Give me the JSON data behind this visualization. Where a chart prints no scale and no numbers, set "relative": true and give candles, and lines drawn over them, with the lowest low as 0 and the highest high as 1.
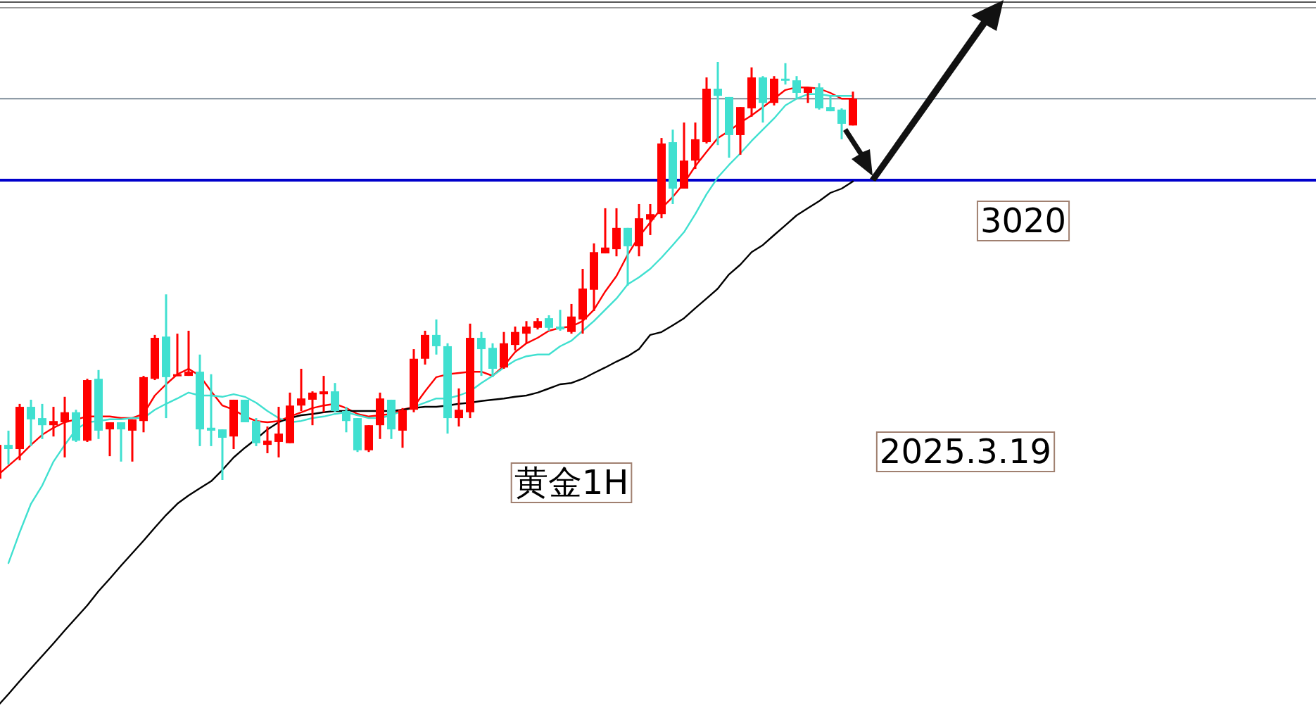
{
  "chart_data": {
    "type": "candlestick",
    "relative": true,
    "grid": false,
    "categories": [
      null,
      null,
      null,
      null,
      null,
      null,
      null,
      null,
      null,
      null,
      null,
      null,
      null,
      null,
      null,
      null,
      null,
      null,
      null,
      null,
      null,
      null,
      null,
      null,
      null,
      null,
      null,
      null,
      null,
      null,
      null,
      null,
      null,
      null,
      null,
      null,
      null,
      null,
      null,
      null,
      null,
      null,
      null,
      null,
      null,
      null,
      null,
      null,
      null,
      null,
      null,
      null,
      null,
      null,
      null,
      null,
      null,
      null,
      null,
      null,
      null,
      null,
      null,
      null,
      null,
      null,
      null,
      null,
      null,
      null,
      null,
      null,
      null,
      null,
      null,
      null,
      null
    ],
    "ohlc": [
      [
        0.003,
        0.084,
        0.003,
        0.084
      ],
      [
        0.084,
        0.118,
        0.037,
        0.074
      ],
      [
        0.074,
        0.182,
        0.047,
        0.175
      ],
      [
        0.175,
        0.192,
        0.081,
        0.145
      ],
      [
        0.148,
        0.182,
        0.098,
        0.131
      ],
      [
        0.131,
        0.175,
        0.104,
        0.141
      ],
      [
        0.138,
        0.199,
        0.054,
        0.162
      ],
      [
        0.162,
        0.168,
        0.091,
        0.094
      ],
      [
        0.094,
        0.242,
        0.091,
        0.239
      ],
      [
        0.242,
        0.263,
        0.098,
        0.118
      ],
      [
        0.121,
        0.138,
        0.057,
        0.138
      ],
      [
        0.138,
        0.138,
        0.044,
        0.121
      ],
      [
        0.118,
        0.145,
        0.044,
        0.145
      ],
      [
        0.141,
        0.249,
        0.114,
        0.246
      ],
      [
        0.242,
        0.347,
        0.239,
        0.34
      ],
      [
        0.343,
        0.444,
        0.148,
        0.246
      ],
      [
        0.249,
        0.35,
        0.249,
        0.253
      ],
      [
        0.249,
        0.357,
        0.249,
        0.259
      ],
      [
        0.259,
        0.3,
        0.081,
        0.121
      ],
      [
        0.125,
        0.253,
        0.081,
        0.118
      ],
      [
        0.121,
        0.121,
        0,
        0.101
      ],
      [
        0.104,
        0.192,
        0.074,
        0.192
      ],
      [
        0.192,
        0.192,
        0.138,
        0.138
      ],
      [
        0.141,
        0.148,
        0.081,
        0.088
      ],
      [
        0.084,
        0.128,
        0.064,
        0.094
      ],
      [
        0.091,
        0.175,
        0.054,
        0.111
      ],
      [
        0.088,
        0.209,
        0.088,
        0.178
      ],
      [
        0.178,
        0.266,
        0.165,
        0.195
      ],
      [
        0.192,
        0.212,
        0.131,
        0.209
      ],
      [
        0.205,
        0.249,
        0.162,
        0.212
      ],
      [
        0.212,
        0.232,
        0.162,
        0.165
      ],
      [
        0.165,
        0.175,
        0.114,
        0.141
      ],
      [
        0.148,
        0.148,
        0.067,
        0.071
      ],
      [
        0.071,
        0.131,
        0.067,
        0.131
      ],
      [
        0.131,
        0.209,
        0.098,
        0.195
      ],
      [
        0.192,
        0.192,
        0.098,
        0.121
      ],
      [
        0.118,
        0.172,
        0.077,
        0.168
      ],
      [
        0.168,
        0.313,
        0.162,
        0.29
      ],
      [
        0.29,
        0.357,
        0.276,
        0.347
      ],
      [
        0.347,
        0.384,
        0.3,
        0.32
      ],
      [
        0.32,
        0.327,
        0.111,
        0.148
      ],
      [
        0.148,
        0.219,
        0.128,
        0.168
      ],
      [
        0.162,
        0.374,
        0.148,
        0.34
      ],
      [
        0.34,
        0.354,
        0.249,
        0.313
      ],
      [
        0.316,
        0.327,
        0.246,
        0.266
      ],
      [
        0.269,
        0.354,
        0.266,
        0.327
      ],
      [
        0.323,
        0.367,
        0.31,
        0.354
      ],
      [
        0.35,
        0.38,
        0.327,
        0.367
      ],
      [
        0.364,
        0.387,
        0.36,
        0.38
      ],
      [
        0.387,
        0.394,
        0.357,
        0.364
      ],
      [
        0.367,
        0.407,
        0.357,
        0.36
      ],
      [
        0.354,
        0.421,
        0.35,
        0.391
      ],
      [
        0.384,
        0.505,
        0.35,
        0.458
      ],
      [
        0.455,
        0.566,
        0.404,
        0.545
      ],
      [
        0.542,
        0.65,
        0.542,
        0.556
      ],
      [
        0.552,
        0.65,
        0.535,
        0.603
      ],
      [
        0.603,
        0.603,
        0.465,
        0.559
      ],
      [
        0.559,
        0.66,
        0.535,
        0.626
      ],
      [
        0.623,
        0.66,
        0.586,
        0.636
      ],
      [
        0.636,
        0.818,
        0.626,
        0.805
      ],
      [
        0.808,
        0.838,
        0.66,
        0.697
      ],
      [
        0.697,
        0.855,
        0.697,
        0.764
      ],
      [
        0.764,
        0.855,
        0.744,
        0.815
      ],
      [
        0.808,
        0.963,
        0.805,
        0.936
      ],
      [
        0.936,
        1,
        0.801,
        0.919
      ],
      [
        0.916,
        0.916,
        0.771,
        0.825
      ],
      [
        0.825,
        0.892,
        0.778,
        0.892
      ],
      [
        0.889,
        0.987,
        0.869,
        0.963
      ],
      [
        0.963,
        0.966,
        0.855,
        0.902
      ],
      [
        0.902,
        0.966,
        0.896,
        0.96
      ],
      [
        0.96,
        0.997,
        0.946,
        0.956
      ],
      [
        0.956,
        0.966,
        0.912,
        0.926
      ],
      [
        0.926,
        0.939,
        0.902,
        0.939
      ],
      [
        0.939,
        0.949,
        0.886,
        0.889
      ],
      [
        0.892,
        0.919,
        0.882,
        0.882
      ],
      [
        0.886,
        0.889,
        0.815,
        0.852
      ],
      [
        0.848,
        0.929,
        0.848,
        0.912
      ]
    ],
    "colors": [
      "#ff0000",
      "#40e0d0",
      "#ff0000",
      "#40e0d0",
      "#40e0d0",
      "#ff0000",
      "#ff0000",
      "#40e0d0",
      "#ff0000",
      "#40e0d0",
      "#ff0000",
      "#40e0d0",
      "#ff0000",
      "#ff0000",
      "#ff0000",
      "#40e0d0",
      "#ff0000",
      "#ff0000",
      "#40e0d0",
      "#40e0d0",
      "#40e0d0",
      "#ff0000",
      "#40e0d0",
      "#40e0d0",
      "#ff0000",
      "#ff0000",
      "#ff0000",
      "#ff0000",
      "#ff0000",
      "#ff0000",
      "#40e0d0",
      "#40e0d0",
      "#40e0d0",
      "#ff0000",
      "#ff0000",
      "#40e0d0",
      "#ff0000",
      "#ff0000",
      "#ff0000",
      "#40e0d0",
      "#40e0d0",
      "#ff0000",
      "#ff0000",
      "#40e0d0",
      "#40e0d0",
      "#ff0000",
      "#ff0000",
      "#ff0000",
      "#ff0000",
      "#40e0d0",
      "#40e0d0",
      "#ff0000",
      "#ff0000",
      "#ff0000",
      "#ff0000",
      "#ff0000",
      "#40e0d0",
      "#ff0000",
      "#ff0000",
      "#ff0000",
      "#40e0d0",
      "#ff0000",
      "#ff0000",
      "#ff0000",
      "#40e0d0",
      "#40e0d0",
      "#ff0000",
      "#ff0000",
      "#40e0d0",
      "#ff0000",
      "#40e0d0",
      "#40e0d0",
      "#ff0000",
      "#40e0d0",
      "#40e0d0",
      "#40e0d0",
      "#ff0000"
    ],
    "series": [
      {
        "type": "line",
        "color": "#ff0000",
        "values": [
          0.01,
          0.034,
          0.057,
          0.084,
          0.108,
          0.125,
          0.138,
          0.145,
          0.152,
          0.152,
          0.152,
          0.148,
          0.148,
          0.158,
          0.202,
          0.229,
          0.253,
          0.266,
          0.249,
          0.212,
          0.178,
          0.168,
          0.152,
          0.141,
          0.138,
          0.141,
          0.152,
          0.162,
          0.172,
          0.178,
          0.182,
          0.172,
          0.158,
          0.152,
          0.155,
          0.158,
          0.168,
          0.175,
          0.212,
          0.246,
          0.253,
          0.256,
          0.259,
          0.259,
          0.249,
          0.273,
          0.306,
          0.327,
          0.34,
          0.357,
          0.364,
          0.367,
          0.38,
          0.407,
          0.451,
          0.488,
          0.539,
          0.582,
          0.616,
          0.65,
          0.677,
          0.71,
          0.751,
          0.785,
          0.818,
          0.835,
          0.855,
          0.872,
          0.892,
          0.912,
          0.933,
          0.939,
          0.939,
          0.936,
          0.926,
          0.912,
          0.912
        ]
      },
      {
        "type": "line",
        "color": "#40e0d0",
        "values": [
          null,
          -0.199,
          -0.125,
          -0.057,
          -0.013,
          0.044,
          0.084,
          0.121,
          0.138,
          0.141,
          0.145,
          0.145,
          0.148,
          0.148,
          0.168,
          0.182,
          0.195,
          0.209,
          0.202,
          0.202,
          0.199,
          0.205,
          0.199,
          0.185,
          0.165,
          0.148,
          0.138,
          0.141,
          0.148,
          0.152,
          0.158,
          0.162,
          0.155,
          0.148,
          0.148,
          0.155,
          0.165,
          0.175,
          0.185,
          0.195,
          0.195,
          0.202,
          0.212,
          0.232,
          0.249,
          0.269,
          0.286,
          0.296,
          0.3,
          0.3,
          0.32,
          0.333,
          0.357,
          0.38,
          0.407,
          0.434,
          0.468,
          0.485,
          0.505,
          0.532,
          0.562,
          0.593,
          0.636,
          0.684,
          0.724,
          0.754,
          0.781,
          0.811,
          0.838,
          0.865,
          0.896,
          0.912,
          0.923,
          0.923,
          0.919,
          0.919,
          0.919
        ]
      },
      {
        "type": "line",
        "color": "#000000",
        "values": [
          -0.542,
          -0.512,
          -0.481,
          -0.451,
          -0.421,
          -0.391,
          -0.36,
          -0.33,
          -0.3,
          -0.266,
          -0.236,
          -0.205,
          -0.175,
          -0.145,
          -0.114,
          -0.084,
          -0.057,
          -0.037,
          -0.02,
          -0.003,
          0.024,
          0.054,
          0.077,
          0.098,
          0.121,
          0.138,
          0.148,
          0.155,
          0.158,
          0.162,
          0.165,
          0.165,
          0.165,
          0.165,
          0.165,
          0.165,
          0.168,
          0.172,
          0.175,
          0.175,
          0.178,
          0.182,
          0.185,
          0.189,
          0.192,
          0.195,
          0.199,
          0.202,
          0.209,
          0.219,
          0.229,
          0.232,
          0.242,
          0.256,
          0.269,
          0.283,
          0.296,
          0.313,
          0.347,
          0.354,
          0.37,
          0.387,
          0.411,
          0.434,
          0.458,
          0.492,
          0.515,
          0.545,
          0.562,
          0.586,
          0.609,
          0.633,
          0.65,
          0.667,
          0.687,
          0.697,
          0.714
        ]
      }
    ],
    "ref_lines": [
      {
        "axis": "y",
        "value": 0.717,
        "color": "#0000cc"
      },
      {
        "axis": "y",
        "value": 0.912,
        "color": "#7f8c99"
      }
    ],
    "annotations": [
      "3020",
      "黄金1H",
      "2025.3.19"
    ]
  }
}
